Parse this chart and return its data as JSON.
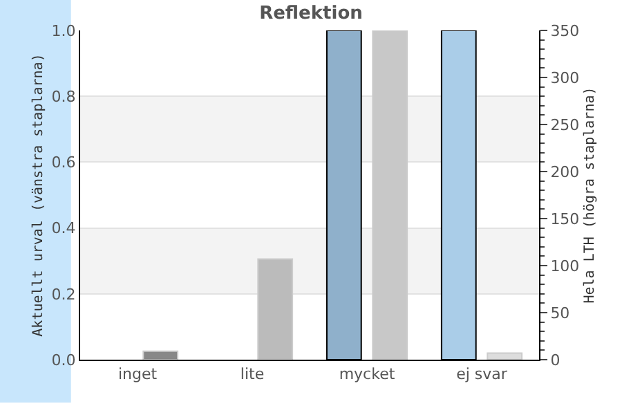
{
  "chart_data": {
    "type": "bar",
    "title": "Reflektion",
    "ylabel": "Aktuellt urval (vänstra staplarna)",
    "y2label": "Hela LTH (högra staplarna)",
    "categories": [
      "inget",
      "lite",
      "mycket",
      "ej svar"
    ],
    "series": [
      {
        "colors": [
          "#8fb0cb",
          "#8fb0cb",
          "#8fb0cb",
          "#aacde8"
        ],
        "values": [
          0,
          0,
          1.0,
          1.0
        ]
      },
      {
        "axis": "y2",
        "colors": [
          "#888888",
          "#bbbbbb",
          "#c8c8c8",
          "#dddddd"
        ],
        "values": [
          9,
          107,
          350,
          7
        ]
      }
    ],
    "ylim": [
      0,
      1
    ],
    "yticks": [
      {
        "value": 0,
        "label": "0.0"
      },
      0.2,
      0.4,
      0.6,
      0.8,
      {
        "value": 1,
        "label": "1.0"
      }
    ],
    "y2lim": [
      0,
      350
    ],
    "y2ticks": [
      0,
      50,
      100,
      150,
      200,
      250,
      300,
      350
    ],
    "grid": "y"
  }
}
